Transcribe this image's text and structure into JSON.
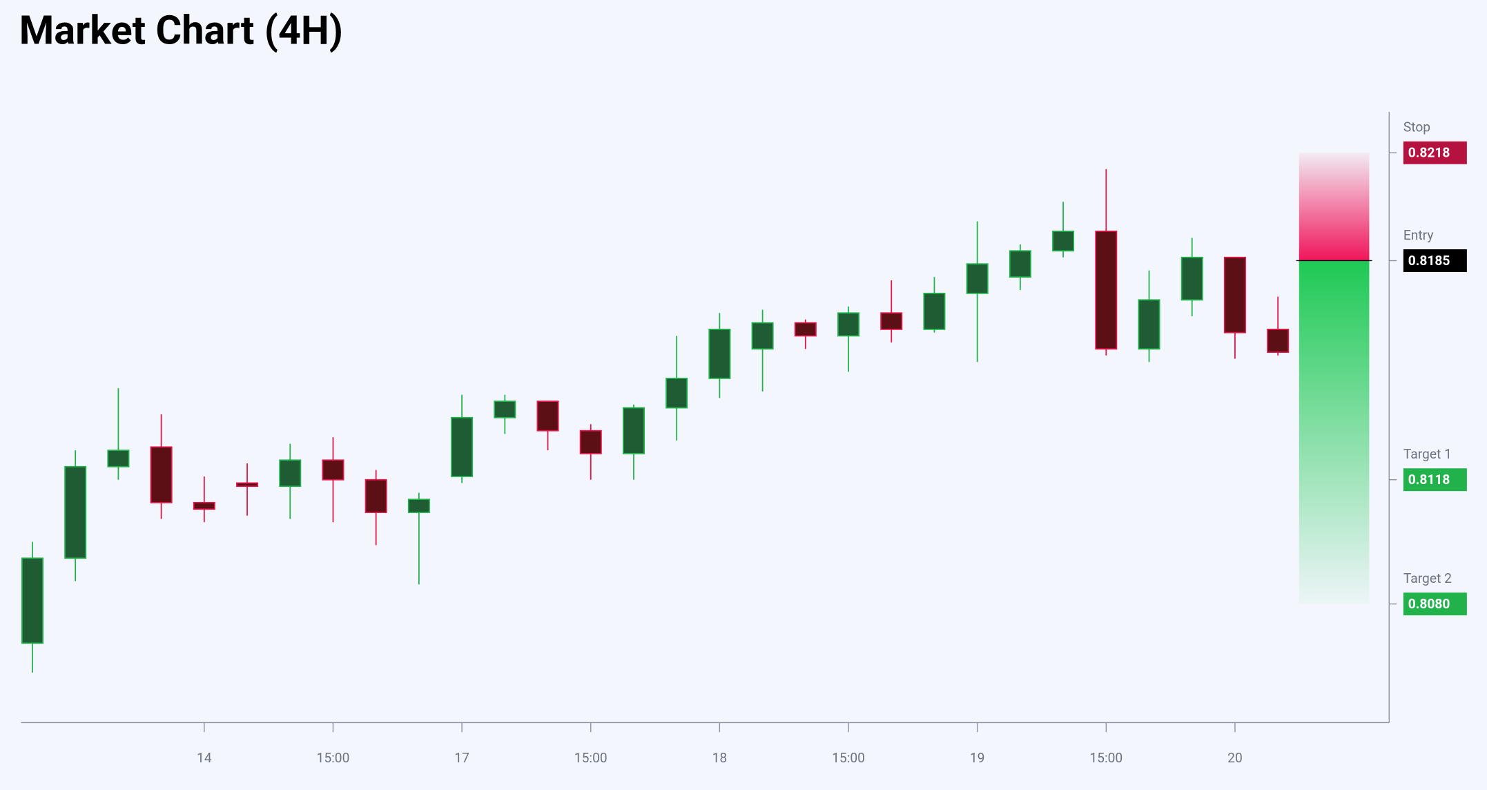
{
  "chart_data": {
    "type": "candlestick",
    "title": "Market Chart (4H)",
    "categories": [
      null,
      null,
      null,
      null,
      "14",
      null,
      null,
      "15:00",
      null,
      null,
      "17",
      null,
      null,
      "15:00",
      null,
      null,
      "18",
      null,
      null,
      "15:00",
      null,
      null,
      "19",
      null,
      null,
      "15:00",
      null,
      null,
      "20",
      null
    ],
    "open": [
      0.8068,
      0.8094,
      0.8122,
      0.8128,
      0.8111,
      0.8117,
      0.8116,
      0.8124,
      0.8118,
      0.8108,
      0.8119,
      0.8137,
      0.8142,
      0.8133,
      0.8126,
      0.814,
      0.8149,
      0.8158,
      0.8166,
      0.8162,
      0.8169,
      0.8164,
      0.8175,
      0.818,
      0.8188,
      0.8194,
      0.8158,
      0.8173,
      0.8186,
      0.8164
    ],
    "high": [
      0.8099,
      0.8127,
      0.8146,
      0.8138,
      0.8119,
      0.8123,
      0.8129,
      0.8131,
      0.8121,
      0.8114,
      0.8144,
      0.8144,
      0.8142,
      0.8135,
      0.8141,
      0.8162,
      0.8169,
      0.817,
      0.8167,
      0.8171,
      0.8179,
      0.818,
      0.8197,
      0.819,
      0.8203,
      0.8213,
      0.8182,
      0.8192,
      0.8186,
      0.8174
    ],
    "low": [
      0.8059,
      0.8087,
      0.8118,
      0.8106,
      0.8105,
      0.8107,
      0.8106,
      0.8105,
      0.8098,
      0.8086,
      0.8117,
      0.8132,
      0.8127,
      0.8118,
      0.8118,
      0.813,
      0.8143,
      0.8145,
      0.8158,
      0.8151,
      0.816,
      0.8163,
      0.8154,
      0.8176,
      0.8186,
      0.8156,
      0.8154,
      0.8168,
      0.8155,
      0.8156
    ],
    "close": [
      0.8094,
      0.8122,
      0.8127,
      0.8111,
      0.8109,
      0.8116,
      0.8124,
      0.8118,
      0.8108,
      0.8112,
      0.8137,
      0.8142,
      0.8133,
      0.8126,
      0.814,
      0.8149,
      0.8164,
      0.8166,
      0.8162,
      0.8169,
      0.8164,
      0.8175,
      0.8184,
      0.8188,
      0.8194,
      0.8158,
      0.8173,
      0.8186,
      0.8163,
      0.8157
    ],
    "up_color": "#22b24c",
    "up_fill": "#1f5c33",
    "down_color": "#e0164a",
    "down_fill": "#5c0f14",
    "ylim": [
      0.80437,
      0.82305
    ],
    "levels": [
      {
        "name": "Stop",
        "value": 0.8218,
        "label": "0.8218",
        "color": "#b5123f"
      },
      {
        "name": "Entry",
        "value": 0.8185,
        "label": "0.8185",
        "color": "#000000"
      },
      {
        "name": "Target 1",
        "value": 0.8118,
        "label": "0.8118",
        "color": "#22b24c"
      },
      {
        "name": "Target 2",
        "value": 0.808,
        "label": "0.8080",
        "color": "#22b24c"
      }
    ]
  }
}
